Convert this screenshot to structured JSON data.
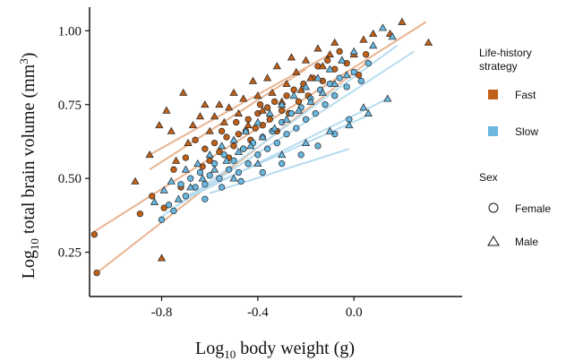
{
  "chart_data": {
    "type": "scatter",
    "xlabel": {
      "prefix": "Log",
      "sub": "10",
      "text": " body weight (g)"
    },
    "ylabel": {
      "prefix": "Log",
      "sub": "10",
      "text": " total brain volume (mm",
      "sup": "3",
      "suffix": ")"
    },
    "xlim": [
      -1.1,
      0.45
    ],
    "ylim": [
      0.1,
      1.08
    ],
    "x_ticks": [
      -0.8,
      -0.4,
      0.0
    ],
    "x_tick_labels": [
      "-0.8",
      "-0.4",
      "0.0"
    ],
    "y_ticks": [
      0.25,
      0.5,
      0.75,
      1.0
    ],
    "y_tick_labels": [
      "0.25",
      "0.50",
      "0.75",
      "1.00"
    ],
    "grid": false,
    "legend_position": "right",
    "legend": {
      "strategy_title_line1": "Life-history",
      "strategy_title_line2": "strategy",
      "fast_label": "Fast",
      "slow_label": "Slow",
      "sex_title": "Sex",
      "female_label": "Female",
      "male_label": "Male"
    },
    "colors": {
      "fast": "#c0611a",
      "slow": "#6ab7e0",
      "fast_line": "#e8b48f",
      "slow_line": "#b7dcef"
    },
    "series": [
      {
        "strategy": "Fast",
        "sex": "Female",
        "points": [
          [
            -1.08,
            0.31
          ],
          [
            -1.07,
            0.18
          ],
          [
            -0.89,
            0.38
          ],
          [
            -0.84,
            0.44
          ],
          [
            -0.79,
            0.4
          ],
          [
            -0.75,
            0.53
          ],
          [
            -0.72,
            0.47
          ],
          [
            -0.7,
            0.57
          ],
          [
            -0.66,
            0.63
          ],
          [
            -0.63,
            0.54
          ],
          [
            -0.62,
            0.6
          ],
          [
            -0.6,
            0.56
          ],
          [
            -0.58,
            0.62
          ],
          [
            -0.56,
            0.59
          ],
          [
            -0.55,
            0.66
          ],
          [
            -0.53,
            0.64
          ],
          [
            -0.52,
            0.57
          ],
          [
            -0.5,
            0.61
          ],
          [
            -0.49,
            0.69
          ],
          [
            -0.48,
            0.65
          ],
          [
            -0.46,
            0.6
          ],
          [
            -0.45,
            0.66
          ],
          [
            -0.44,
            0.7
          ],
          [
            -0.43,
            0.63
          ],
          [
            -0.41,
            0.67
          ],
          [
            -0.4,
            0.72
          ],
          [
            -0.39,
            0.75
          ],
          [
            -0.38,
            0.68
          ],
          [
            -0.36,
            0.74
          ],
          [
            -0.35,
            0.7
          ],
          [
            -0.33,
            0.76
          ],
          [
            -0.32,
            0.66
          ],
          [
            -0.3,
            0.73
          ],
          [
            -0.28,
            0.78
          ],
          [
            -0.27,
            0.72
          ],
          [
            -0.25,
            0.8
          ],
          [
            -0.23,
            0.76
          ],
          [
            -0.21,
            0.82
          ],
          [
            -0.19,
            0.78
          ],
          [
            -0.17,
            0.84
          ],
          [
            -0.15,
            0.88
          ],
          [
            -0.13,
            0.83
          ],
          [
            -0.11,
            0.9
          ],
          [
            -0.08,
            0.87
          ],
          [
            -0.06,
            0.93
          ],
          [
            -0.03,
            0.89
          ],
          [
            0.02,
            0.85
          ],
          [
            0.05,
            0.92
          ]
        ]
      },
      {
        "strategy": "Fast",
        "sex": "Male",
        "points": [
          [
            -0.91,
            0.49
          ],
          [
            -0.85,
            0.58
          ],
          [
            -0.81,
            0.68
          ],
          [
            -0.8,
            0.23
          ],
          [
            -0.78,
            0.73
          ],
          [
            -0.76,
            0.66
          ],
          [
            -0.74,
            0.56
          ],
          [
            -0.71,
            0.79
          ],
          [
            -0.69,
            0.62
          ],
          [
            -0.67,
            0.68
          ],
          [
            -0.64,
            0.71
          ],
          [
            -0.62,
            0.75
          ],
          [
            -0.6,
            0.66
          ],
          [
            -0.58,
            0.71
          ],
          [
            -0.56,
            0.75
          ],
          [
            -0.54,
            0.69
          ],
          [
            -0.52,
            0.74
          ],
          [
            -0.5,
            0.79
          ],
          [
            -0.48,
            0.72
          ],
          [
            -0.46,
            0.77
          ],
          [
            -0.44,
            0.68
          ],
          [
            -0.42,
            0.83
          ],
          [
            -0.4,
            0.78
          ],
          [
            -0.38,
            0.73
          ],
          [
            -0.36,
            0.84
          ],
          [
            -0.34,
            0.79
          ],
          [
            -0.32,
            0.88
          ],
          [
            -0.3,
            0.76
          ],
          [
            -0.28,
            0.82
          ],
          [
            -0.26,
            0.91
          ],
          [
            -0.24,
            0.86
          ],
          [
            -0.22,
            0.8
          ],
          [
            -0.2,
            0.9
          ],
          [
            -0.18,
            0.84
          ],
          [
            -0.15,
            0.94
          ],
          [
            -0.13,
            0.88
          ],
          [
            -0.1,
            0.92
          ],
          [
            -0.08,
            0.96
          ],
          [
            -0.05,
            0.9
          ],
          [
            0.0,
            0.92
          ],
          [
            0.04,
            0.97
          ],
          [
            0.08,
            0.99
          ],
          [
            0.15,
            0.99
          ],
          [
            0.2,
            1.03
          ],
          [
            0.31,
            0.96
          ]
        ]
      },
      {
        "strategy": "Slow",
        "sex": "Female",
        "points": [
          [
            -0.8,
            0.36
          ],
          [
            -0.77,
            0.41
          ],
          [
            -0.75,
            0.39
          ],
          [
            -0.72,
            0.48
          ],
          [
            -0.7,
            0.44
          ],
          [
            -0.68,
            0.5
          ],
          [
            -0.66,
            0.47
          ],
          [
            -0.64,
            0.52
          ],
          [
            -0.62,
            0.48
          ],
          [
            -0.6,
            0.51
          ],
          [
            -0.58,
            0.55
          ],
          [
            -0.56,
            0.5
          ],
          [
            -0.54,
            0.58
          ],
          [
            -0.52,
            0.53
          ],
          [
            -0.5,
            0.56
          ],
          [
            -0.48,
            0.52
          ],
          [
            -0.46,
            0.6
          ],
          [
            -0.44,
            0.55
          ],
          [
            -0.42,
            0.62
          ],
          [
            -0.4,
            0.58
          ],
          [
            -0.38,
            0.64
          ],
          [
            -0.36,
            0.6
          ],
          [
            -0.34,
            0.66
          ],
          [
            -0.32,
            0.62
          ],
          [
            -0.3,
            0.69
          ],
          [
            -0.28,
            0.65
          ],
          [
            -0.26,
            0.72
          ],
          [
            -0.24,
            0.67
          ],
          [
            -0.22,
            0.74
          ],
          [
            -0.2,
            0.7
          ],
          [
            -0.18,
            0.77
          ],
          [
            -0.16,
            0.72
          ],
          [
            -0.14,
            0.8
          ],
          [
            -0.12,
            0.75
          ],
          [
            -0.1,
            0.82
          ],
          [
            -0.08,
            0.78
          ],
          [
            -0.06,
            0.84
          ],
          [
            -0.03,
            0.81
          ],
          [
            0.0,
            0.86
          ],
          [
            0.03,
            0.83
          ],
          [
            0.06,
            0.89
          ],
          [
            -0.62,
            0.43
          ],
          [
            -0.55,
            0.47
          ],
          [
            -0.47,
            0.49
          ],
          [
            -0.38,
            0.52
          ],
          [
            -0.3,
            0.55
          ],
          [
            -0.22,
            0.58
          ],
          [
            -0.15,
            0.61
          ],
          [
            -0.08,
            0.65
          ],
          [
            -0.02,
            0.7
          ]
        ]
      },
      {
        "strategy": "Slow",
        "sex": "Male",
        "points": [
          [
            -0.83,
            0.42
          ],
          [
            -0.79,
            0.46
          ],
          [
            -0.76,
            0.49
          ],
          [
            -0.73,
            0.43
          ],
          [
            -0.7,
            0.53
          ],
          [
            -0.68,
            0.47
          ],
          [
            -0.65,
            0.55
          ],
          [
            -0.63,
            0.5
          ],
          [
            -0.6,
            0.58
          ],
          [
            -0.58,
            0.53
          ],
          [
            -0.55,
            0.61
          ],
          [
            -0.53,
            0.56
          ],
          [
            -0.5,
            0.63
          ],
          [
            -0.48,
            0.59
          ],
          [
            -0.45,
            0.66
          ],
          [
            -0.43,
            0.61
          ],
          [
            -0.4,
            0.69
          ],
          [
            -0.38,
            0.64
          ],
          [
            -0.35,
            0.72
          ],
          [
            -0.33,
            0.67
          ],
          [
            -0.3,
            0.75
          ],
          [
            -0.28,
            0.7
          ],
          [
            -0.25,
            0.78
          ],
          [
            -0.23,
            0.73
          ],
          [
            -0.2,
            0.81
          ],
          [
            -0.18,
            0.76
          ],
          [
            -0.15,
            0.84
          ],
          [
            -0.13,
            0.79
          ],
          [
            -0.1,
            0.87
          ],
          [
            -0.08,
            0.82
          ],
          [
            -0.05,
            0.9
          ],
          [
            -0.03,
            0.85
          ],
          [
            0.0,
            0.93
          ],
          [
            0.04,
            0.74
          ],
          [
            0.08,
            0.95
          ],
          [
            0.12,
            1.01
          ],
          [
            0.16,
            0.98
          ],
          [
            -0.5,
            0.5
          ],
          [
            -0.4,
            0.55
          ],
          [
            -0.3,
            0.58
          ],
          [
            -0.2,
            0.62
          ],
          [
            -0.1,
            0.66
          ],
          [
            -0.02,
            0.68
          ],
          [
            0.06,
            0.72
          ],
          [
            0.14,
            0.77
          ]
        ]
      }
    ],
    "fit_lines": [
      {
        "strategy": "Fast",
        "x": [
          -1.08,
          0.3
        ],
        "y": [
          0.32,
          1.03
        ]
      },
      {
        "strategy": "Fast",
        "x": [
          -1.07,
          0.05
        ],
        "y": [
          0.18,
          0.89
        ]
      },
      {
        "strategy": "Fast",
        "x": [
          -0.85,
          -0.2
        ],
        "y": [
          0.53,
          0.87
        ]
      },
      {
        "strategy": "Fast",
        "x": [
          -0.85,
          -0.1
        ],
        "y": [
          0.58,
          0.92
        ]
      },
      {
        "strategy": "Slow",
        "x": [
          -0.8,
          0.18
        ],
        "y": [
          0.37,
          0.95
        ]
      },
      {
        "strategy": "Slow",
        "x": [
          -0.75,
          0.25
        ],
        "y": [
          0.4,
          0.93
        ]
      },
      {
        "strategy": "Slow",
        "x": [
          -0.7,
          0.05
        ],
        "y": [
          0.44,
          0.71
        ]
      },
      {
        "strategy": "Slow",
        "x": [
          -0.6,
          -0.02
        ],
        "y": [
          0.45,
          0.6
        ]
      },
      {
        "strategy": "Slow",
        "x": [
          -0.7,
          0.14
        ],
        "y": [
          0.43,
          0.77
        ]
      }
    ]
  }
}
